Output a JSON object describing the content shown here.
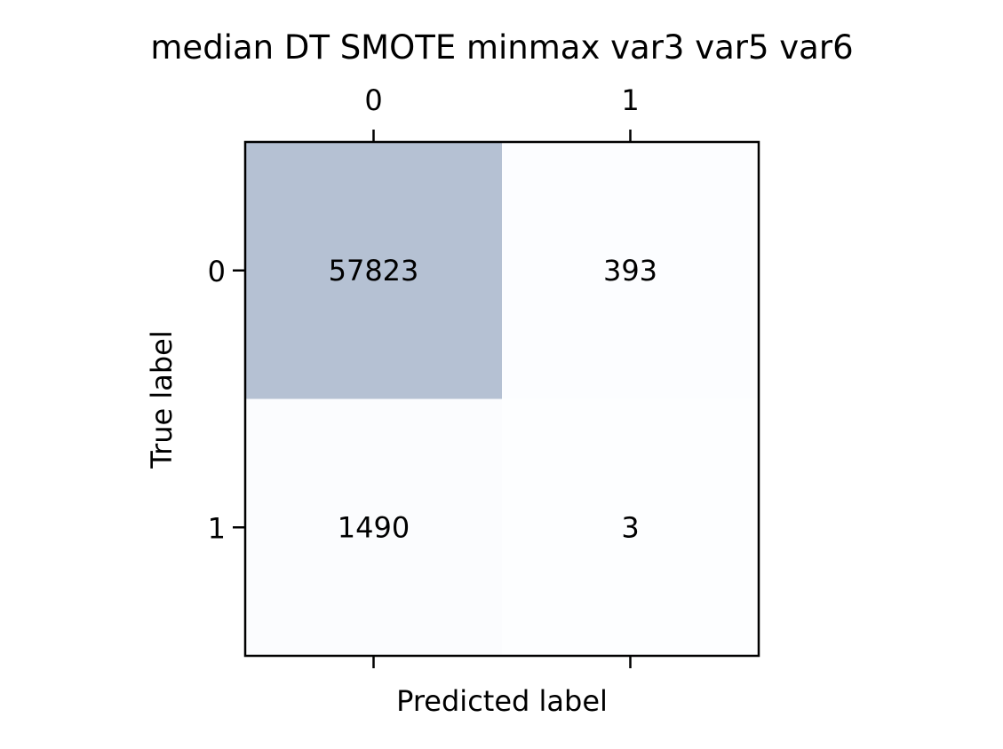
{
  "chart_data": {
    "type": "heatmap",
    "title": "median DT SMOTE minmax var3 var5 var6",
    "xlabel": "Predicted label",
    "ylabel": "True label",
    "x_categories": [
      "0",
      "1"
    ],
    "y_categories": [
      "0",
      "1"
    ],
    "values": [
      [
        57823,
        393
      ],
      [
        1490,
        3
      ]
    ],
    "x_tick_position": "top",
    "grid": false,
    "colormap": {
      "low": "#f7fbff",
      "high": "#08306b",
      "alpha": 0.3
    }
  }
}
